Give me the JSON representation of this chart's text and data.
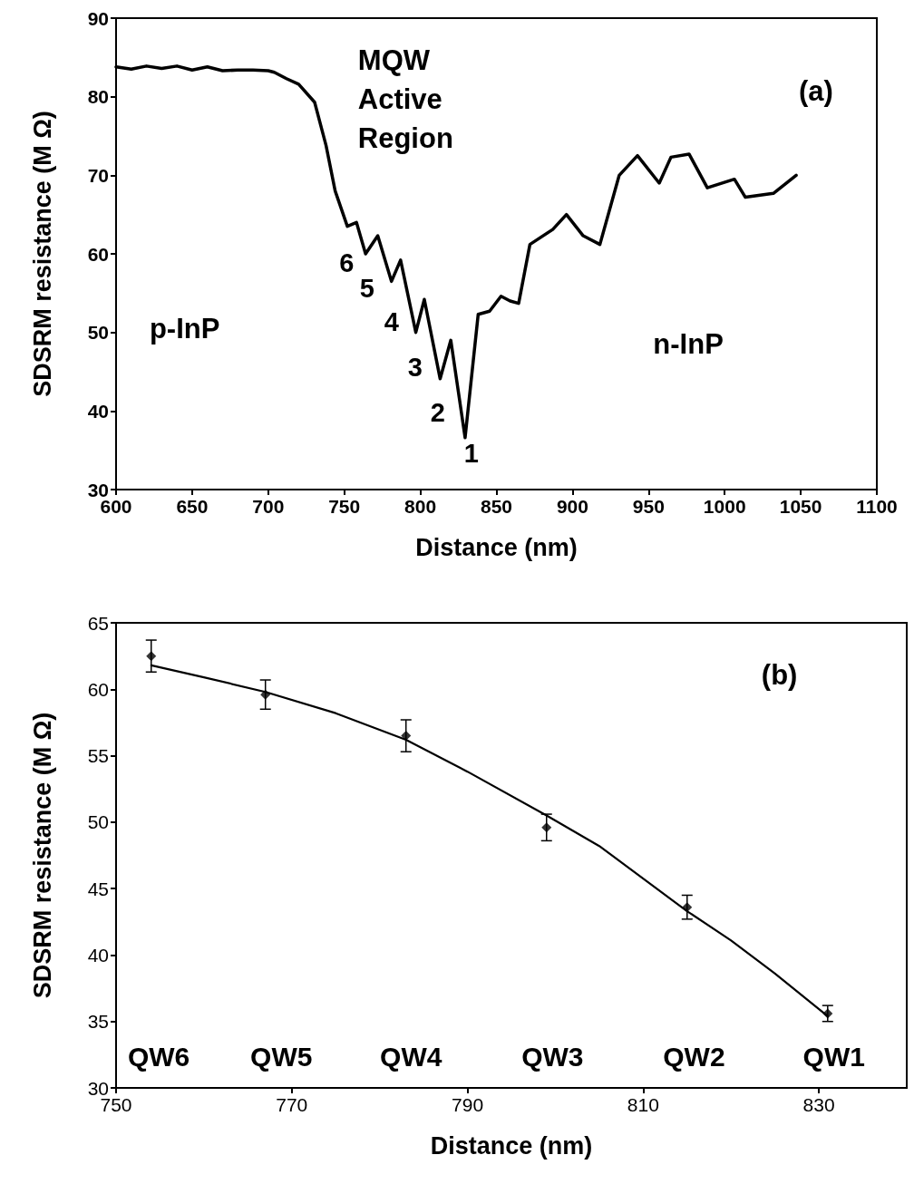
{
  "chart_data": [
    {
      "type": "line",
      "xlabel": "Distance (nm)",
      "ylabel": "SDSRM resistance (M Ω)",
      "series": [
        {
          "color": "#000000",
          "x": [
            600,
            610,
            620,
            630,
            640,
            650,
            660,
            670,
            680,
            690,
            700,
            704,
            712,
            720,
            730.5,
            738,
            744,
            752,
            758,
            764,
            772,
            781,
            787,
            797,
            802.6,
            813,
            820,
            829.4,
            838,
            845.5,
            853,
            859,
            864.6,
            872,
            887,
            896,
            907,
            918,
            930.7,
            942.7,
            957,
            964.7,
            976.6,
            988.6,
            1006.4,
            1013.6,
            1032,
            1047
          ],
          "values": [
            83.8,
            83.5,
            83.9,
            83.6,
            83.9,
            83.4,
            83.8,
            83.3,
            83.4,
            83.4,
            83.3,
            83.1,
            82.3,
            81.6,
            79.3,
            73.8,
            68,
            63.5,
            64,
            60,
            62.3,
            56.5,
            59.2,
            50,
            54.2,
            44.1,
            49,
            36.6,
            52.3,
            52.7,
            54.6,
            54,
            53.7,
            61.2,
            63.1,
            65,
            62.3,
            61.2,
            70,
            72.5,
            69,
            72.3,
            72.7,
            68.4,
            69.5,
            67.2,
            67.7,
            70
          ]
        }
      ],
      "xlim": [
        600,
        1100
      ],
      "xticks": [
        600,
        650,
        700,
        750,
        800,
        850,
        900,
        950,
        1000,
        1050,
        1100
      ],
      "ylim": [
        30,
        90
      ],
      "yticks": [
        30,
        40,
        50,
        60,
        70,
        80,
        90
      ],
      "grid": false,
      "marker": "none",
      "line_style": "solid",
      "annotations": [
        "(a)",
        "MQW\nActive\nRegion",
        "p-InP",
        "n-InP",
        "6",
        "5",
        "4",
        "3",
        "2",
        "1"
      ]
    },
    {
      "type": "scatter",
      "xlabel": "Distance (nm)",
      "ylabel": "SDSRM resistance (M Ω)",
      "series": [
        {
          "color": "#000000",
          "marker": "diamond",
          "x": [
            754,
            767,
            783,
            799,
            815,
            831
          ],
          "values": [
            62.5,
            59.6,
            56.5,
            49.6,
            43.6,
            35.6
          ],
          "errors": [
            1.2,
            1.1,
            1.2,
            1,
            0.9,
            0.6
          ]
        },
        {
          "type": "line",
          "color": "#000000",
          "marker": "none",
          "x": [
            754,
            760,
            767,
            775,
            783,
            790,
            799,
            805,
            815,
            820,
            825,
            831
          ],
          "values": [
            61.8,
            60.9,
            59.8,
            58.2,
            56.2,
            53.8,
            50.5,
            48.2,
            43.3,
            41.1,
            38.6,
            35.4
          ]
        }
      ],
      "xlim": [
        750,
        840
      ],
      "xticks": [
        750,
        770,
        790,
        810,
        830
      ],
      "ylim": [
        30,
        65
      ],
      "yticks": [
        30,
        35,
        40,
        45,
        50,
        55,
        60,
        65
      ],
      "grid": false,
      "line_style": "solid",
      "annotations": [
        "(b)",
        "QW6",
        "QW5",
        "QW4",
        "QW3",
        "QW2",
        "QW1"
      ]
    }
  ]
}
